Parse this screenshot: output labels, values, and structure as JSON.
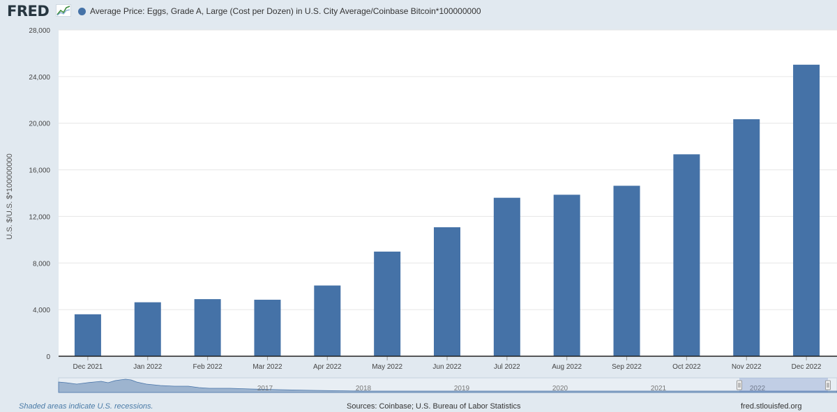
{
  "header": {
    "logo": "FRED",
    "legend_label": "Average Price: Eggs, Grade A, Large (Cost per Dozen) in U.S. City Average/Coinbase Bitcoin*100000000"
  },
  "colors": {
    "bar": "#4572a7",
    "background": "#e1e9f0",
    "plot_background": "#ffffff",
    "navigator_fill": "#4572a7"
  },
  "chart_data": {
    "type": "bar",
    "title": "",
    "xlabel": "",
    "ylabel": "U.S. $/U.S. $*100000000",
    "categories": [
      "Dec 2021",
      "Jan 2022",
      "Feb 2022",
      "Mar 2022",
      "Apr 2022",
      "May 2022",
      "Jun 2022",
      "Jul 2022",
      "Aug 2022",
      "Sep 2022",
      "Oct 2022",
      "Nov 2022",
      "Dec 2022"
    ],
    "series": [
      {
        "name": "Average Price: Eggs, Grade A, Large (Cost per Dozen) in U.S. City Average/Coinbase Bitcoin*100000000",
        "values": [
          3600,
          4630,
          4900,
          4850,
          6070,
          8980,
          11070,
          13600,
          13860,
          14630,
          17330,
          20340,
          25020
        ]
      }
    ],
    "ylim": [
      0,
      28000
    ],
    "yticks": [
      0,
      4000,
      8000,
      12000,
      16000,
      20000,
      24000,
      28000
    ],
    "ytick_labels": [
      "0",
      "4,000",
      "8,000",
      "12,000",
      "16,000",
      "20,000",
      "24,000",
      "28,000"
    ],
    "grid": true,
    "legend": "top-left"
  },
  "navigator": {
    "year_labels": [
      "2017",
      "2018",
      "2019",
      "2020",
      "2021",
      "2022"
    ]
  },
  "footer": {
    "recession_note": "Shaded areas indicate U.S. recessions.",
    "sources": "Sources: Coinbase; U.S. Bureau of Labor Statistics",
    "site": "fred.stlouisfed.org"
  }
}
